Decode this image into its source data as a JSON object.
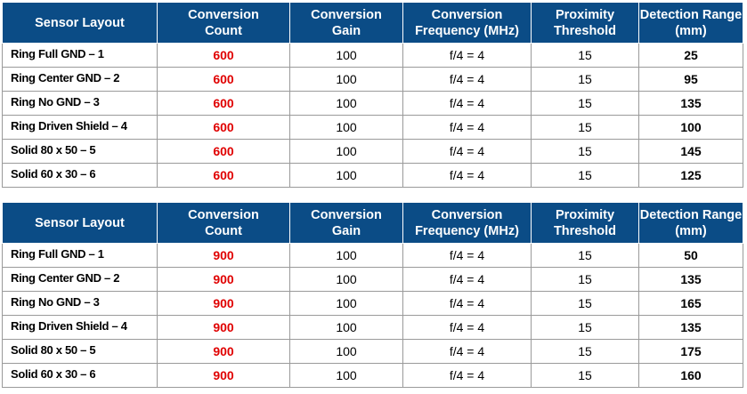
{
  "columns": [
    [
      "Sensor Layout"
    ],
    [
      "Conversion",
      "Count"
    ],
    [
      "Conversion",
      "Gain"
    ],
    [
      "Conversion",
      "Frequency (MHz)"
    ],
    [
      "Proximity",
      "Threshold"
    ],
    [
      "Detection Range",
      "(mm)"
    ]
  ],
  "colors": {
    "header_bg": "#0b4c86",
    "header_text": "#ffffff",
    "count_text": "#e00000"
  },
  "tables": [
    {
      "rows": [
        [
          "Ring Full GND – 1",
          "600",
          "100",
          "f/4 = 4",
          "15",
          "25"
        ],
        [
          "Ring Center GND – 2",
          "600",
          "100",
          "f/4 = 4",
          "15",
          "95"
        ],
        [
          "Ring No GND – 3",
          "600",
          "100",
          "f/4 = 4",
          "15",
          "135"
        ],
        [
          "Ring Driven Shield – 4",
          "600",
          "100",
          "f/4 = 4",
          "15",
          "100"
        ],
        [
          "Solid 80 x 50 – 5",
          "600",
          "100",
          "f/4 = 4",
          "15",
          "145"
        ],
        [
          "Solid 60 x 30 – 6",
          "600",
          "100",
          "f/4 = 4",
          "15",
          "125"
        ]
      ]
    },
    {
      "rows": [
        [
          "Ring Full GND – 1",
          "900",
          "100",
          "f/4 = 4",
          "15",
          "50"
        ],
        [
          "Ring Center GND – 2",
          "900",
          "100",
          "f/4 = 4",
          "15",
          "135"
        ],
        [
          "Ring No GND – 3",
          "900",
          "100",
          "f/4 = 4",
          "15",
          "165"
        ],
        [
          "Ring Driven Shield – 4",
          "900",
          "100",
          "f/4 = 4",
          "15",
          "135"
        ],
        [
          "Solid 80 x 50 – 5",
          "900",
          "100",
          "f/4 = 4",
          "15",
          "175"
        ],
        [
          "Solid 60 x 30 – 6",
          "900",
          "100",
          "f/4 = 4",
          "15",
          "160"
        ]
      ]
    }
  ]
}
